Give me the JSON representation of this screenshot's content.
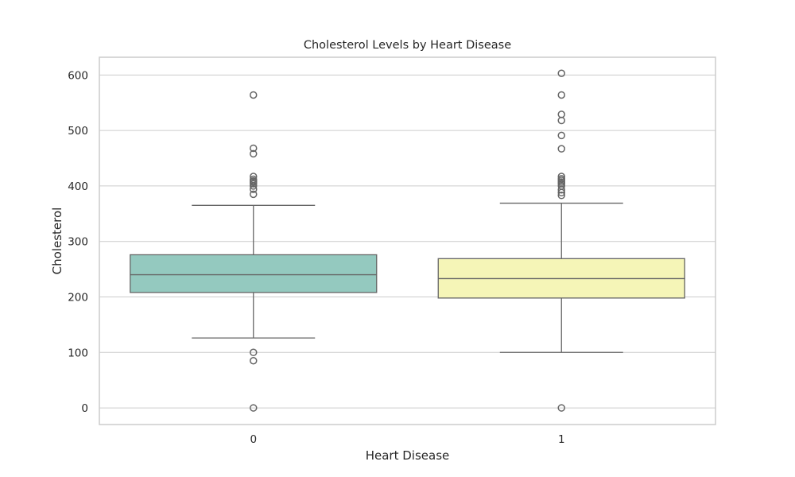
{
  "chart_data": {
    "type": "box",
    "title": "Cholesterol Levels by Heart Disease",
    "xlabel": "Heart Disease",
    "ylabel": "Cholesterol",
    "categories": [
      "0",
      "1"
    ],
    "yticks": [
      0,
      100,
      200,
      300,
      400,
      500,
      600
    ],
    "ylim": [
      -30,
      632
    ],
    "grid": "horizontal",
    "colors": [
      "#94c9bf",
      "#f5f5b7"
    ],
    "edge_color": "#666666",
    "boxes": [
      {
        "category": "0",
        "whisker_low": 126,
        "q1": 208,
        "median": 240,
        "q3": 276,
        "whisker_high": 365,
        "outliers": [
          0,
          85,
          100,
          385,
          394,
          400,
          404,
          407,
          409,
          412,
          417,
          458,
          468,
          564
        ]
      },
      {
        "category": "1",
        "whisker_low": 100,
        "q1": 198,
        "median": 233,
        "q3": 269,
        "whisker_high": 369,
        "outliers": [
          0,
          383,
          388,
          393,
          400,
          404,
          407,
          410,
          413,
          417,
          467,
          491,
          518,
          529,
          564,
          603
        ]
      }
    ]
  }
}
